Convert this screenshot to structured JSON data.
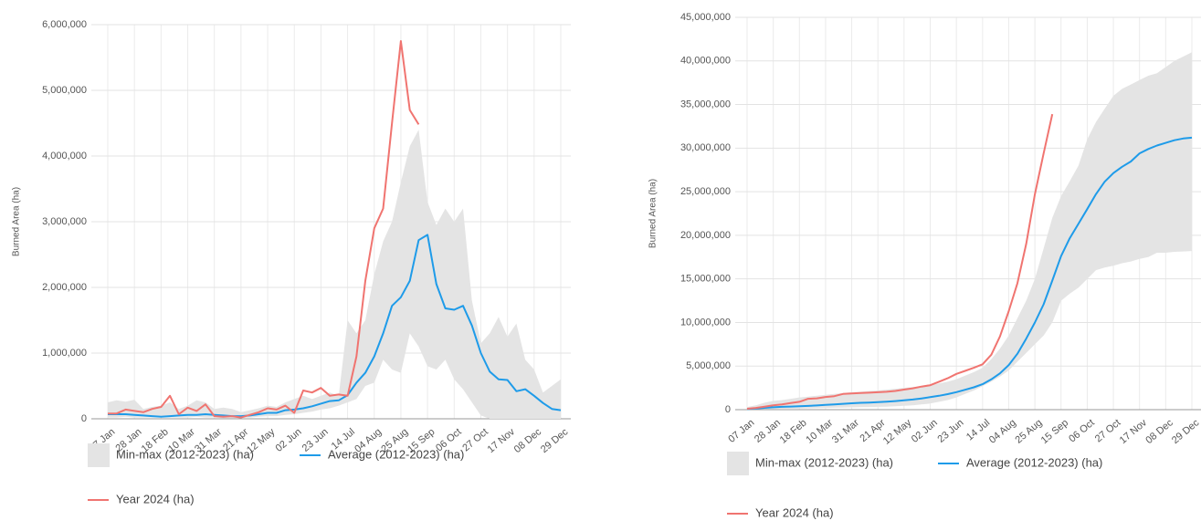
{
  "chart_data": [
    {
      "type": "line",
      "y_label": "Burned Area (ha)",
      "grid": true,
      "categories": [
        "07 Jan",
        null,
        null,
        "28 Jan",
        null,
        null,
        "18 Feb",
        null,
        null,
        "10 Mar",
        null,
        null,
        "31 Mar",
        null,
        null,
        "21 Apr",
        null,
        null,
        "12 May",
        null,
        null,
        "02 Jun",
        null,
        null,
        "23 Jun",
        null,
        null,
        "14 Jul",
        null,
        null,
        "04 Aug",
        null,
        null,
        "25 Aug",
        null,
        null,
        "15 Sep",
        null,
        null,
        "06 Oct",
        null,
        null,
        "27 Oct",
        null,
        null,
        "17 Nov",
        null,
        null,
        "08 Dec",
        null,
        null,
        "29 Dec"
      ],
      "ylim": [
        0,
        6000000
      ],
      "yticks": [
        0,
        {
          "value": 1000000,
          "label": "1,000,000"
        },
        {
          "value": 2000000,
          "label": "2,000,000"
        },
        {
          "value": 3000000,
          "label": "3,000,000"
        },
        {
          "value": 4000000,
          "label": "4,000,000"
        },
        {
          "value": 5000000,
          "label": "5,000,000"
        },
        {
          "value": 6000000,
          "label": "6,000,000"
        }
      ],
      "series": [
        {
          "name": "Min-max (2012-2023) (ha)",
          "color": "#e4e4e4",
          "lower": [
            20000,
            20000,
            30000,
            20000,
            20000,
            20000,
            20000,
            20000,
            20000,
            20000,
            30000,
            20000,
            20000,
            10000,
            10000,
            10000,
            20000,
            30000,
            40000,
            40000,
            60000,
            70000,
            90000,
            110000,
            140000,
            160000,
            200000,
            250000,
            300000,
            500000,
            550000,
            900000,
            750000,
            700000,
            1300000,
            1100000,
            800000,
            750000,
            900000,
            600000,
            450000,
            250000,
            50000,
            0,
            0,
            0,
            0,
            0,
            0,
            0,
            0,
            0
          ],
          "upper": [
            250000,
            280000,
            260000,
            290000,
            150000,
            180000,
            200000,
            250000,
            150000,
            200000,
            280000,
            250000,
            150000,
            170000,
            150000,
            100000,
            130000,
            160000,
            200000,
            180000,
            250000,
            300000,
            350000,
            300000,
            350000,
            400000,
            350000,
            1500000,
            1300000,
            1500000,
            2200000,
            2700000,
            3000000,
            3600000,
            4150000,
            4400000,
            3300000,
            2950000,
            3200000,
            3000000,
            3200000,
            1800000,
            1150000,
            1300000,
            1550000,
            1250000,
            1450000,
            900000,
            750000,
            400000,
            500000,
            600000
          ]
        },
        {
          "name": "Average (2012-2023) (ha)",
          "color": "#1e9be9",
          "values": [
            70000,
            70000,
            70000,
            60000,
            50000,
            40000,
            30000,
            40000,
            50000,
            60000,
            60000,
            70000,
            60000,
            50000,
            40000,
            40000,
            50000,
            70000,
            90000,
            90000,
            130000,
            140000,
            160000,
            190000,
            230000,
            270000,
            280000,
            360000,
            550000,
            700000,
            950000,
            1300000,
            1720000,
            1850000,
            2100000,
            2720000,
            2800000,
            2050000,
            1680000,
            1660000,
            1720000,
            1420000,
            1000000,
            720000,
            600000,
            590000,
            420000,
            450000,
            350000,
            240000,
            150000,
            130000
          ]
        },
        {
          "name": "Year 2024 (ha)",
          "color": "#f07470",
          "values": [
            80000,
            80000,
            140000,
            120000,
            100000,
            150000,
            180000,
            350000,
            70000,
            170000,
            120000,
            220000,
            40000,
            30000,
            40000,
            20000,
            60000,
            100000,
            160000,
            140000,
            200000,
            90000,
            430000,
            400000,
            470000,
            350000,
            370000,
            350000,
            950000,
            2100000,
            2900000,
            3200000,
            4500000,
            5750000,
            4700000,
            4480000,
            null,
            null,
            null,
            null,
            null,
            null,
            null,
            null,
            null,
            null,
            null,
            null,
            null,
            null,
            null,
            null
          ]
        }
      ]
    },
    {
      "type": "line",
      "y_label": "Burned Area (ha)",
      "grid": true,
      "categories": [
        "07 Jan",
        null,
        null,
        "28 Jan",
        null,
        null,
        "18 Feb",
        null,
        null,
        "10 Mar",
        null,
        null,
        "31 Mar",
        null,
        null,
        "21 Apr",
        null,
        null,
        "12 May",
        null,
        null,
        "02 Jun",
        null,
        null,
        "23 Jun",
        null,
        null,
        "14 Jul",
        null,
        null,
        "04 Aug",
        null,
        null,
        "25 Aug",
        null,
        null,
        "15 Sep",
        null,
        null,
        "06 Oct",
        null,
        null,
        "27 Oct",
        null,
        null,
        "17 Nov",
        null,
        null,
        "08 Dec",
        null,
        null,
        "29 Dec"
      ],
      "ylim": [
        0,
        45000000
      ],
      "yticks": [
        0,
        {
          "value": 5000000,
          "label": "5,000,000"
        },
        {
          "value": 10000000,
          "label": "10,000,000"
        },
        {
          "value": 15000000,
          "label": "15,000,000"
        },
        {
          "value": 20000000,
          "label": "20,000,000"
        },
        {
          "value": 25000000,
          "label": "25,000,000"
        },
        {
          "value": 30000000,
          "label": "30,000,000"
        },
        {
          "value": 35000000,
          "label": "35,000,000"
        },
        {
          "value": 40000000,
          "label": "40,000,000"
        },
        {
          "value": 45000000,
          "label": "45,000,000"
        }
      ],
      "series": [
        {
          "name": "Min-max (2012-2023) (ha)",
          "color": "#e4e4e4",
          "lower": [
            20000,
            40000,
            60000,
            80000,
            100000,
            120000,
            140000,
            160000,
            180000,
            200000,
            220000,
            240000,
            260000,
            280000,
            300000,
            320000,
            350000,
            400000,
            450000,
            500000,
            600000,
            700000,
            900000,
            1100000,
            1400000,
            1800000,
            2200000,
            2700000,
            3200000,
            3800000,
            4500000,
            5500000,
            6500000,
            7500000,
            8500000,
            10000000,
            12500000,
            13300000,
            14000000,
            15000000,
            16000000,
            16300000,
            16500000,
            16800000,
            17000000,
            17300000,
            17500000,
            18000000,
            18000000,
            18100000,
            18150000,
            18200000
          ],
          "upper": [
            300000,
            500000,
            800000,
            1000000,
            1100000,
            1250000,
            1400000,
            1500000,
            1600000,
            1700000,
            1800000,
            1900000,
            2000000,
            2050000,
            2150000,
            2200000,
            2300000,
            2400000,
            2500000,
            2600000,
            2700000,
            2800000,
            3000000,
            3200000,
            3500000,
            3900000,
            4300000,
            4800000,
            5800000,
            7000000,
            8500000,
            10500000,
            12500000,
            15000000,
            18500000,
            22000000,
            24500000,
            26200000,
            28000000,
            31000000,
            33000000,
            34500000,
            36000000,
            36800000,
            37300000,
            37800000,
            38300000,
            38600000,
            39300000,
            40000000,
            40500000,
            41000000
          ]
        },
        {
          "name": "Average (2012-2023) (ha)",
          "color": "#1e9be9",
          "values": [
            70000,
            140000,
            210000,
            270000,
            320000,
            360000,
            390000,
            430000,
            480000,
            540000,
            600000,
            670000,
            730000,
            780000,
            820000,
            860000,
            910000,
            980000,
            1070000,
            1160000,
            1290000,
            1430000,
            1590000,
            1780000,
            2010000,
            2280000,
            2560000,
            2920000,
            3470000,
            4170000,
            5120000,
            6420000,
            8140000,
            9990000,
            12090000,
            14810000,
            17610000,
            19660000,
            21340000,
            23000000,
            24720000,
            26140000,
            27140000,
            27860000,
            28460000,
            29400000,
            29900000,
            30300000,
            30600000,
            30900000,
            31100000,
            31200000
          ]
        },
        {
          "name": "Year 2024 (ha)",
          "color": "#f07470",
          "values": [
            100000,
            200000,
            350000,
            500000,
            600000,
            750000,
            900000,
            1250000,
            1300000,
            1450000,
            1550000,
            1800000,
            1850000,
            1900000,
            1950000,
            2000000,
            2050000,
            2150000,
            2300000,
            2450000,
            2650000,
            2800000,
            3200000,
            3600000,
            4100000,
            4450000,
            4800000,
            5200000,
            6300000,
            8400000,
            11300000,
            14500000,
            19000000,
            24700000,
            29400000,
            33900000,
            null,
            null,
            null,
            null,
            null,
            null,
            null,
            null,
            null,
            null,
            null,
            null,
            null,
            null,
            null,
            null
          ]
        }
      ]
    }
  ]
}
